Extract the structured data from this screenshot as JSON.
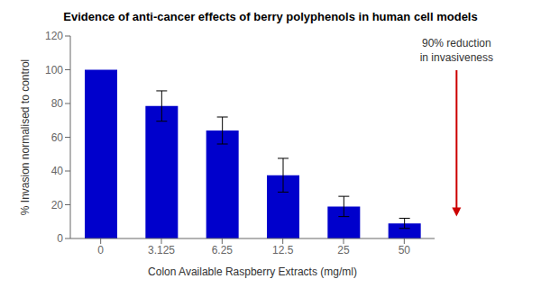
{
  "chart_data": {
    "type": "bar",
    "title": "Evidence of anti-cancer effects of berry polyphenols in human cell models",
    "xlabel": "Colon Available Raspberry Extracts (mg/ml)",
    "ylabel": "% Invasion normalised to control",
    "categories": [
      "0",
      "3.125",
      "6.25",
      "12.5",
      "25",
      "50"
    ],
    "values": [
      100,
      78.5,
      64,
      37.5,
      19,
      9
    ],
    "errors": [
      0,
      9,
      8,
      10,
      6,
      3
    ],
    "color": "#0000CC",
    "ylim": [
      0,
      120
    ],
    "yticks": [
      0,
      20,
      40,
      60,
      80,
      100,
      120
    ],
    "grid": false,
    "annotation": {
      "text": "90% reduction\nin invasiveness",
      "color": "#333333",
      "arrow_color": "#CC0000"
    }
  }
}
